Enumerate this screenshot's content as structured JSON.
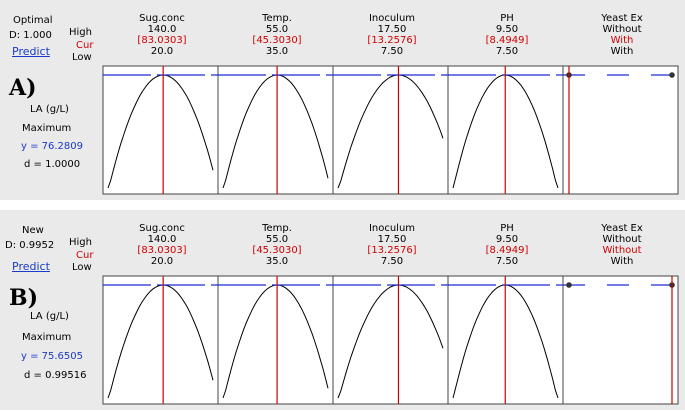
{
  "colors": {
    "blue_line": "#1a2fd0",
    "red_line": "#cc0000",
    "curve": "#000000",
    "bg": "#eaeaea"
  },
  "row_labels": {
    "high": "High",
    "cur": "Cur",
    "low": "Low"
  },
  "predict_label": "Predict",
  "factors": [
    {
      "name": "Sug.conc",
      "high": "140.0",
      "low": "20.0"
    },
    {
      "name": "Temp.",
      "high": "55.0",
      "low": "35.0"
    },
    {
      "name": "Inoculum",
      "high": "17.50",
      "low": "7.50"
    },
    {
      "name": "PH",
      "high": "9.50",
      "low": "7.50"
    },
    {
      "name": "Yeast Ex",
      "high": "Without",
      "low": "With"
    }
  ],
  "panels": [
    {
      "header_title": "Optimal",
      "header_d": "D: 1.000",
      "tag": "A)",
      "response": "LA (g/L)",
      "goal": "Maximum",
      "y_text": "y = 76.2809",
      "d_text": "d = 1.0000",
      "cur": [
        "[83.0303]",
        "[45.3030]",
        "[13.2576]",
        "[8.4949]",
        "With"
      ]
    },
    {
      "header_title": "New",
      "header_d": "D: 0.9952",
      "tag": "B)",
      "response": "LA (g/L)",
      "goal": "Maximum",
      "y_text": "y = 75.6505",
      "d_text": "d = 0.99516",
      "cur": [
        "[83.0303]",
        "[45.3030]",
        "[13.2576]",
        "[8.4949]",
        "Without"
      ]
    }
  ],
  "chart_data": [
    {
      "type": "line",
      "title": "Optimal D: 1.000",
      "response": "LA (g/L)",
      "goal": "Maximum",
      "y": 76.2809,
      "d": 1.0,
      "factors": [
        {
          "name": "Sug.conc",
          "low": 20.0,
          "high": 140.0,
          "cur": 83.0303,
          "curve": "concave, peak near cur"
        },
        {
          "name": "Temp.",
          "low": 35.0,
          "high": 55.0,
          "cur": 45.303,
          "curve": "concave, peak near cur"
        },
        {
          "name": "Inoculum",
          "low": 7.5,
          "high": 17.5,
          "cur": 13.2576,
          "curve": "concave, peak near cur"
        },
        {
          "name": "PH",
          "low": 7.5,
          "high": 9.5,
          "cur": 8.4949,
          "curve": "concave, peak near cur"
        },
        {
          "name": "Yeast Ex",
          "levels": [
            "With",
            "Without"
          ],
          "cur": "With"
        }
      ]
    },
    {
      "type": "line",
      "title": "New D: 0.9952",
      "response": "LA (g/L)",
      "goal": "Maximum",
      "y": 75.6505,
      "d": 0.99516,
      "factors": [
        {
          "name": "Sug.conc",
          "low": 20.0,
          "high": 140.0,
          "cur": 83.0303,
          "curve": "concave, peak near cur"
        },
        {
          "name": "Temp.",
          "low": 35.0,
          "high": 55.0,
          "cur": 45.303,
          "curve": "concave, peak near cur"
        },
        {
          "name": "Inoculum",
          "low": 7.5,
          "high": 17.5,
          "cur": 13.2576,
          "curve": "concave, peak near cur"
        },
        {
          "name": "PH",
          "low": 7.5,
          "high": 9.5,
          "cur": 8.4949,
          "curve": "concave, peak near cur"
        },
        {
          "name": "Yeast Ex",
          "levels": [
            "With",
            "Without"
          ],
          "cur": "Without"
        }
      ]
    }
  ]
}
